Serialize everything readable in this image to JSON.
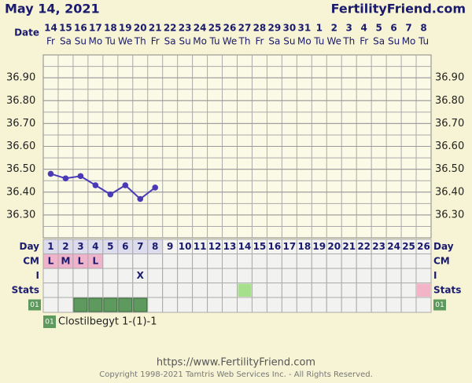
{
  "header": {
    "date": "May 14, 2021",
    "site": "FertilityFriend.com"
  },
  "chart_data": {
    "type": "line",
    "date_label": "Date",
    "dates": [
      14,
      15,
      16,
      17,
      18,
      19,
      20,
      21,
      22,
      23,
      24,
      25,
      26,
      27,
      28,
      29,
      30,
      31,
      1,
      2,
      3,
      4,
      5,
      6,
      7,
      8
    ],
    "weekdays": [
      "Fr",
      "Sa",
      "Su",
      "Mo",
      "Tu",
      "We",
      "Th",
      "Fr",
      "Sa",
      "Su",
      "Mo",
      "Tu",
      "We",
      "Th",
      "Fr",
      "Sa",
      "Su",
      "Mo",
      "Tu",
      "We",
      "Th",
      "Fr",
      "Sa",
      "Su",
      "Mo",
      "Tu"
    ],
    "ylim": [
      36.2,
      37.0
    ],
    "yticks": [
      {
        "value": 36.3,
        "label": "36.30"
      },
      {
        "value": 36.4,
        "label": "36.40"
      },
      {
        "value": 36.5,
        "label": "36.50"
      },
      {
        "value": 36.6,
        "label": "36.60"
      },
      {
        "value": 36.7,
        "label": "36.70"
      },
      {
        "value": 36.8,
        "label": "36.80"
      },
      {
        "value": 36.9,
        "label": "36.90"
      }
    ],
    "grid": true,
    "series": [
      {
        "color": "#4a3ab8",
        "values": [
          36.48,
          36.46,
          36.47,
          36.43,
          36.39,
          36.43,
          36.37,
          36.42,
          null,
          null,
          null,
          null,
          null,
          null,
          null,
          null,
          null,
          null,
          null,
          null,
          null,
          null,
          null,
          null,
          null,
          null
        ]
      }
    ],
    "day_label": "Day",
    "days": [
      1,
      2,
      3,
      4,
      5,
      6,
      7,
      8,
      9,
      10,
      11,
      12,
      13,
      14,
      15,
      16,
      17,
      18,
      19,
      20,
      21,
      22,
      23,
      24,
      25,
      26
    ],
    "cm_label": "CM",
    "cm": [
      "L",
      "M",
      "L",
      "L",
      null,
      null,
      null,
      null,
      null,
      null,
      null,
      null,
      null,
      null,
      null,
      null,
      null,
      null,
      null,
      null,
      null,
      null,
      null,
      null,
      null,
      null
    ],
    "cm_color": "#efb3cc",
    "i_label": "I",
    "intercourse": [
      null,
      null,
      null,
      null,
      null,
      null,
      "X",
      null,
      null,
      null,
      null,
      null,
      null,
      null,
      null,
      null,
      null,
      null,
      null,
      null,
      null,
      null,
      null,
      null,
      null,
      null
    ],
    "stats_label": "Stats",
    "stats": [
      null,
      null,
      null,
      null,
      null,
      null,
      null,
      null,
      null,
      null,
      null,
      null,
      null,
      "#a6e08c",
      null,
      null,
      null,
      null,
      null,
      null,
      null,
      null,
      null,
      null,
      null,
      "#f2b4c6"
    ],
    "medications": [
      {
        "code": "01",
        "name": "Clostilbegyt 1-(1)-1",
        "color": "#5e9a5e",
        "days": [
          3,
          4,
          5,
          6,
          7
        ]
      }
    ]
  },
  "footer": {
    "url": "https://www.FertilityFriend.com",
    "copyright": "Copyright 1998-2021 Tamtris Web Services Inc. - All Rights Reserved."
  }
}
